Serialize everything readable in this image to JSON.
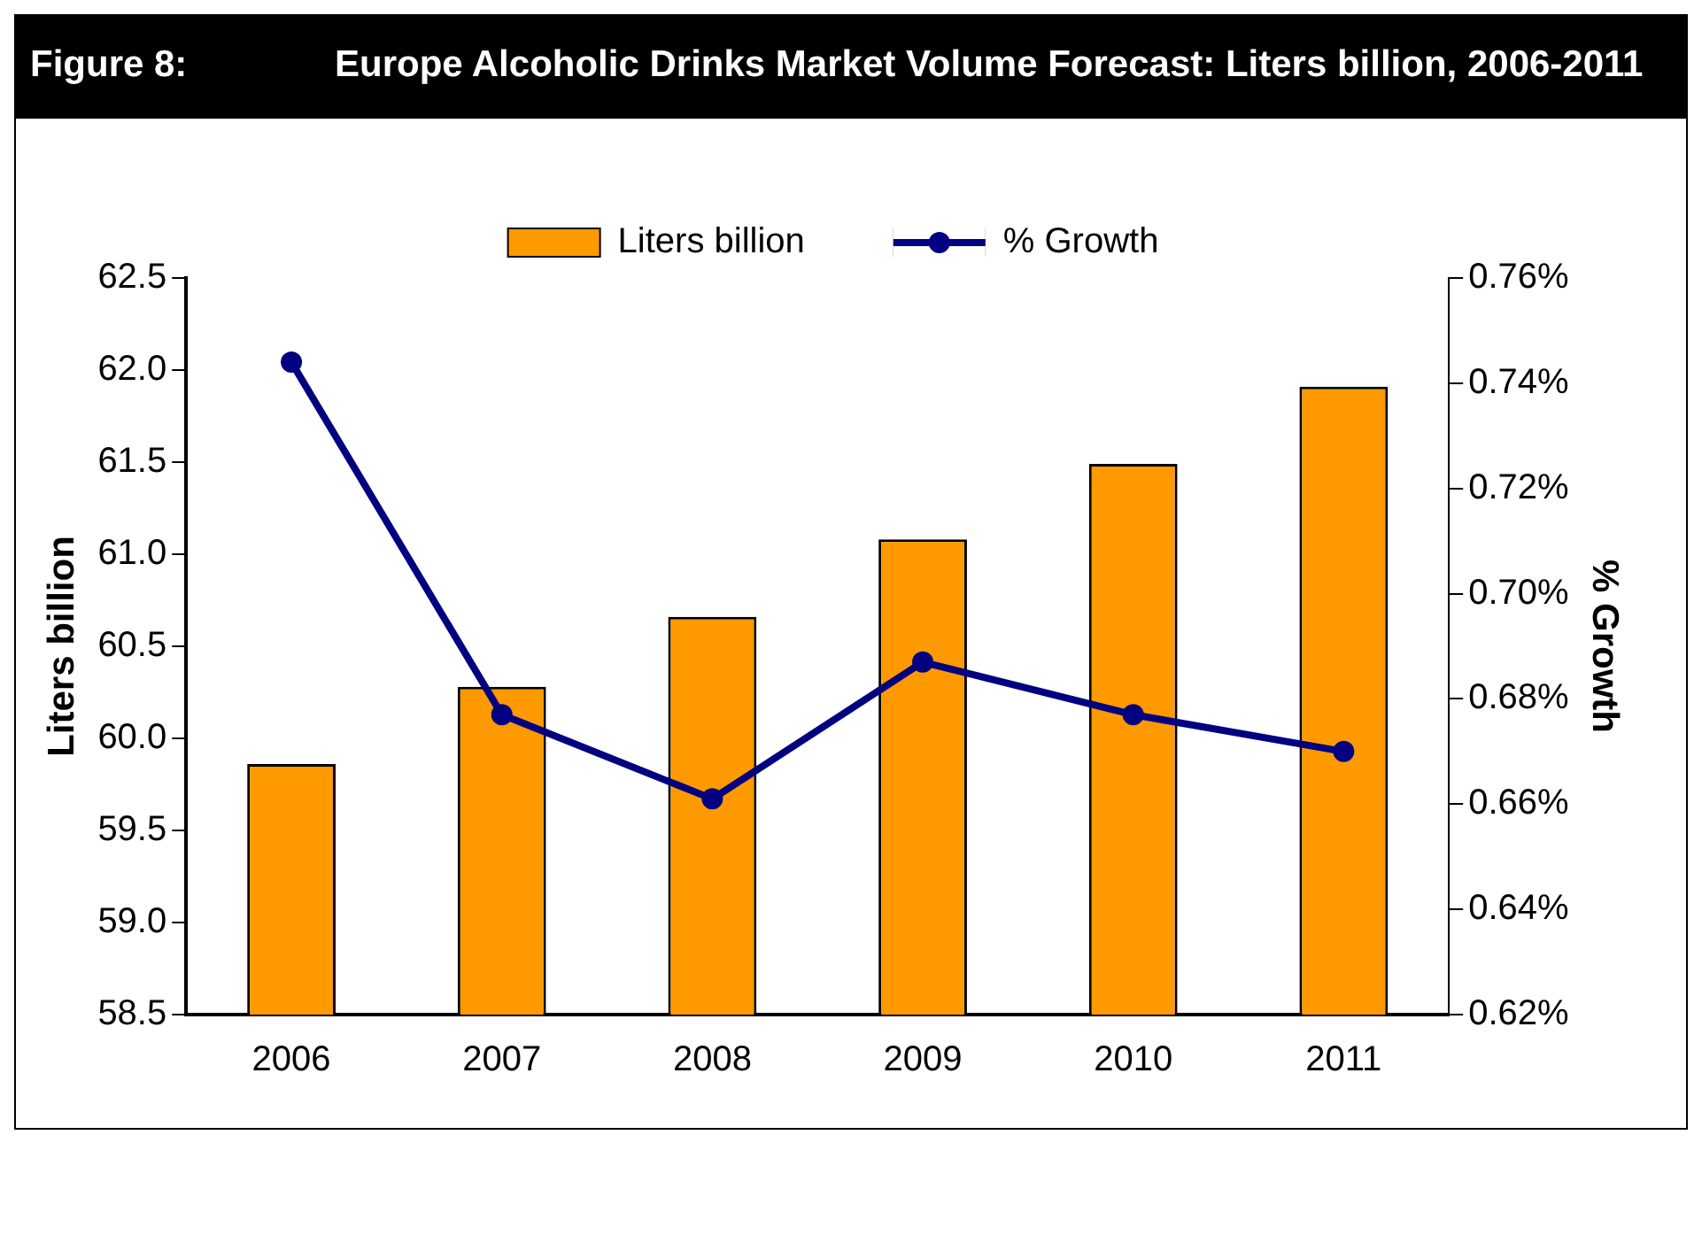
{
  "chart_data": {
    "type": "bar",
    "title": "Figure 8:",
    "subtitle": "Europe Alcoholic Drinks Market Volume Forecast: Liters billion, 2006-2011",
    "categories": [
      "2006",
      "2007",
      "2008",
      "2009",
      "2010",
      "2011"
    ],
    "series": [
      {
        "name": "Liters billion",
        "color": "#ff9900",
        "values": [
          59.86,
          60.28,
          60.66,
          61.08,
          61.49,
          61.91
        ]
      },
      {
        "name": "% Growth",
        "type": "line",
        "axis": "y2",
        "color": "#000080",
        "values": [
          0.744,
          0.677,
          0.661,
          0.687,
          0.677,
          0.67
        ]
      }
    ],
    "ylabel": "Liters billion",
    "y2label": "% Growth",
    "ylim": [
      58.5,
      62.5
    ],
    "yticks": [
      {
        "value": 58.5,
        "label": "58.5"
      },
      {
        "value": 59,
        "label": "59.0"
      },
      {
        "value": 59.5,
        "label": "59.5"
      },
      {
        "value": 60,
        "label": "60.0"
      },
      {
        "value": 60.5,
        "label": "60.5"
      },
      {
        "value": 61,
        "label": "61.0"
      },
      {
        "value": 61.5,
        "label": "61.5"
      },
      {
        "value": 62,
        "label": "62.0"
      },
      {
        "value": 62.5,
        "label": "62.5"
      }
    ],
    "y2lim": [
      0.62,
      0.76
    ],
    "y2ticks": [
      {
        "value": 0.62,
        "label": "0.62%"
      },
      {
        "value": 0.64,
        "label": "0.64%"
      },
      {
        "value": 0.66,
        "label": "0.66%"
      },
      {
        "value": 0.68,
        "label": "0.68%"
      },
      {
        "value": 0.7,
        "label": "0.70%"
      },
      {
        "value": 0.72,
        "label": "0.72%"
      },
      {
        "value": 0.74,
        "label": "0.74%"
      },
      {
        "value": 0.76,
        "label": "0.76%"
      }
    ],
    "legend": "top",
    "grid": false,
    "marker": "circle"
  }
}
